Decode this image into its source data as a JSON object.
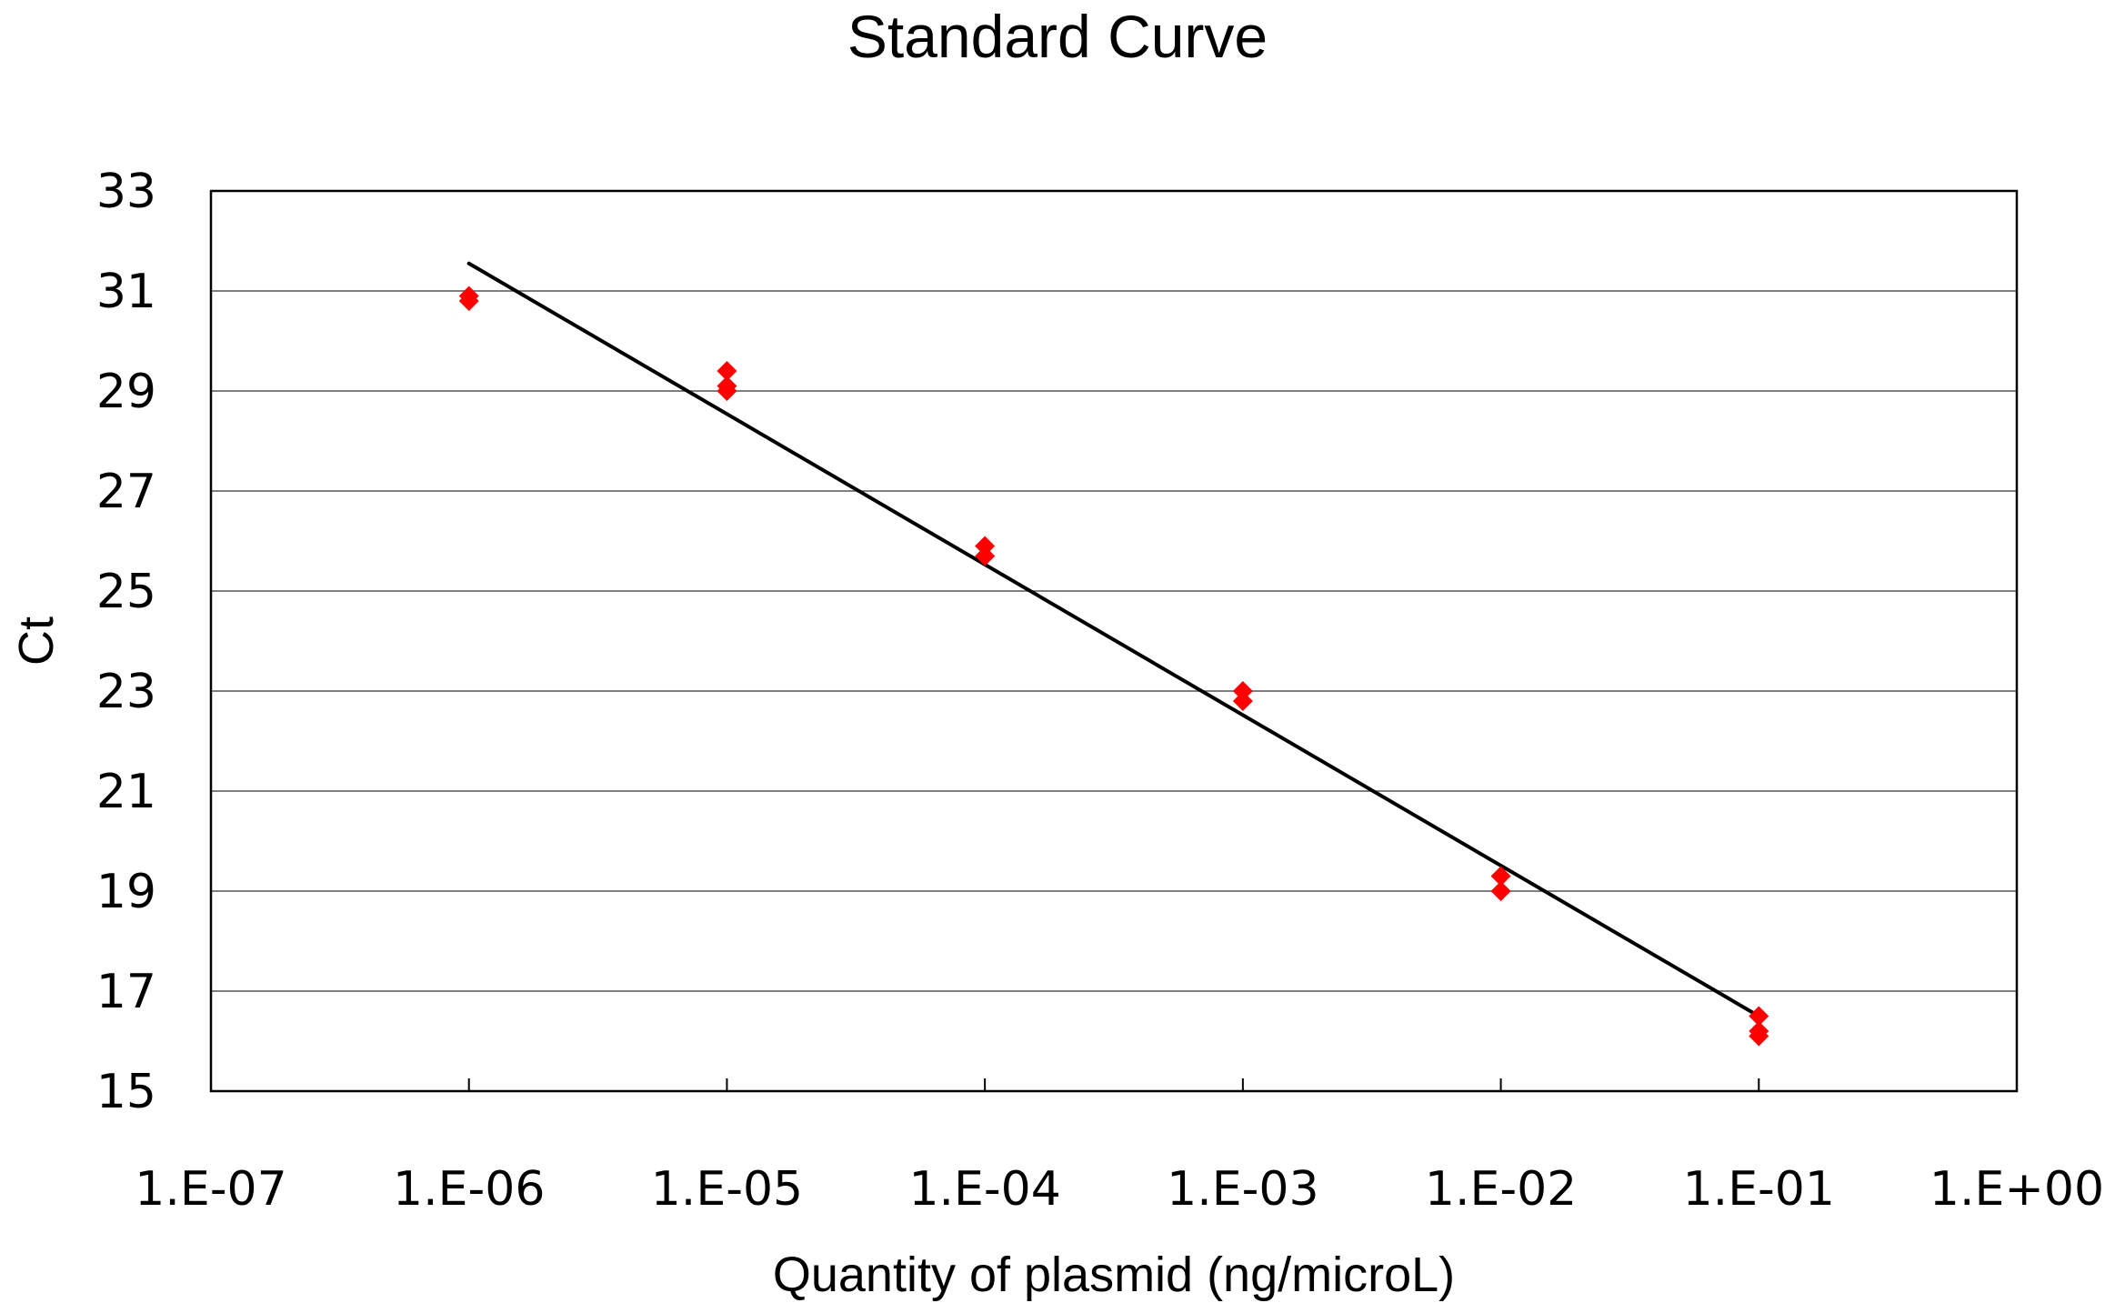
{
  "chart_data": {
    "type": "scatter",
    "title": "Standard Curve",
    "xlabel": "Quantity of plasmid (ng/microL)",
    "ylabel": "Ct",
    "x_scale": "log",
    "x_ticks": [
      "1.E-07",
      "1.E-06",
      "1.E-05",
      "1.E-04",
      "1.E-03",
      "1.E-02",
      "1.E-01",
      "1.E+00"
    ],
    "y_ticks": [
      "15",
      "17",
      "19",
      "21",
      "23",
      "25",
      "27",
      "29",
      "31",
      "33"
    ],
    "xlim": [
      1e-07,
      1
    ],
    "ylim": [
      15,
      33
    ],
    "grid": "horizontal",
    "marker_color": "#ff0000",
    "line_color": "#000000",
    "series": [
      {
        "type": "scatter",
        "points": [
          {
            "x": 1e-06,
            "y": 30.9
          },
          {
            "x": 1e-06,
            "y": 30.8
          },
          {
            "x": 1e-05,
            "y": 29.4
          },
          {
            "x": 1e-05,
            "y": 29.1
          },
          {
            "x": 1e-05,
            "y": 29.0
          },
          {
            "x": 0.0001,
            "y": 25.9
          },
          {
            "x": 0.0001,
            "y": 25.7
          },
          {
            "x": 0.001,
            "y": 23.0
          },
          {
            "x": 0.001,
            "y": 22.8
          },
          {
            "x": 0.01,
            "y": 19.3
          },
          {
            "x": 0.01,
            "y": 19.0
          },
          {
            "x": 0.1,
            "y": 16.5
          },
          {
            "x": 0.1,
            "y": 16.2
          },
          {
            "x": 0.1,
            "y": 16.1
          }
        ]
      },
      {
        "type": "line",
        "points": [
          {
            "x": 1e-06,
            "y": 31.55
          },
          {
            "x": 0.1,
            "y": 16.5
          }
        ]
      }
    ]
  }
}
